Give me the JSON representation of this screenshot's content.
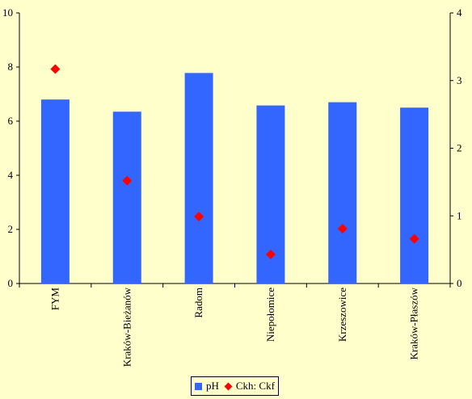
{
  "chart_data": {
    "type": "bar",
    "categories": [
      "FYM",
      "Kraków-Bieżanów",
      "Radom",
      "Niepołomice",
      "Krzeszowice",
      "Kraków-Płaszów"
    ],
    "series": [
      {
        "name": "pH",
        "kind": "bar",
        "axis": "left",
        "color": "#3366ff",
        "values": [
          6.8,
          6.35,
          7.78,
          6.58,
          6.7,
          6.5
        ]
      },
      {
        "name": "Ckh: Ckf",
        "kind": "scatter",
        "axis": "right",
        "color": "#ff0000",
        "values": [
          3.17,
          1.52,
          0.99,
          0.43,
          0.81,
          0.66
        ]
      }
    ],
    "y_left": {
      "ylim": [
        0,
        10
      ],
      "ticks": [
        "0",
        "2",
        "4",
        "6",
        "8",
        "10"
      ]
    },
    "y_right": {
      "ylim": [
        0,
        4
      ],
      "ticks": [
        "0",
        "1",
        "2",
        "3",
        "4"
      ]
    },
    "grid": false,
    "legend_position": "bottom"
  }
}
